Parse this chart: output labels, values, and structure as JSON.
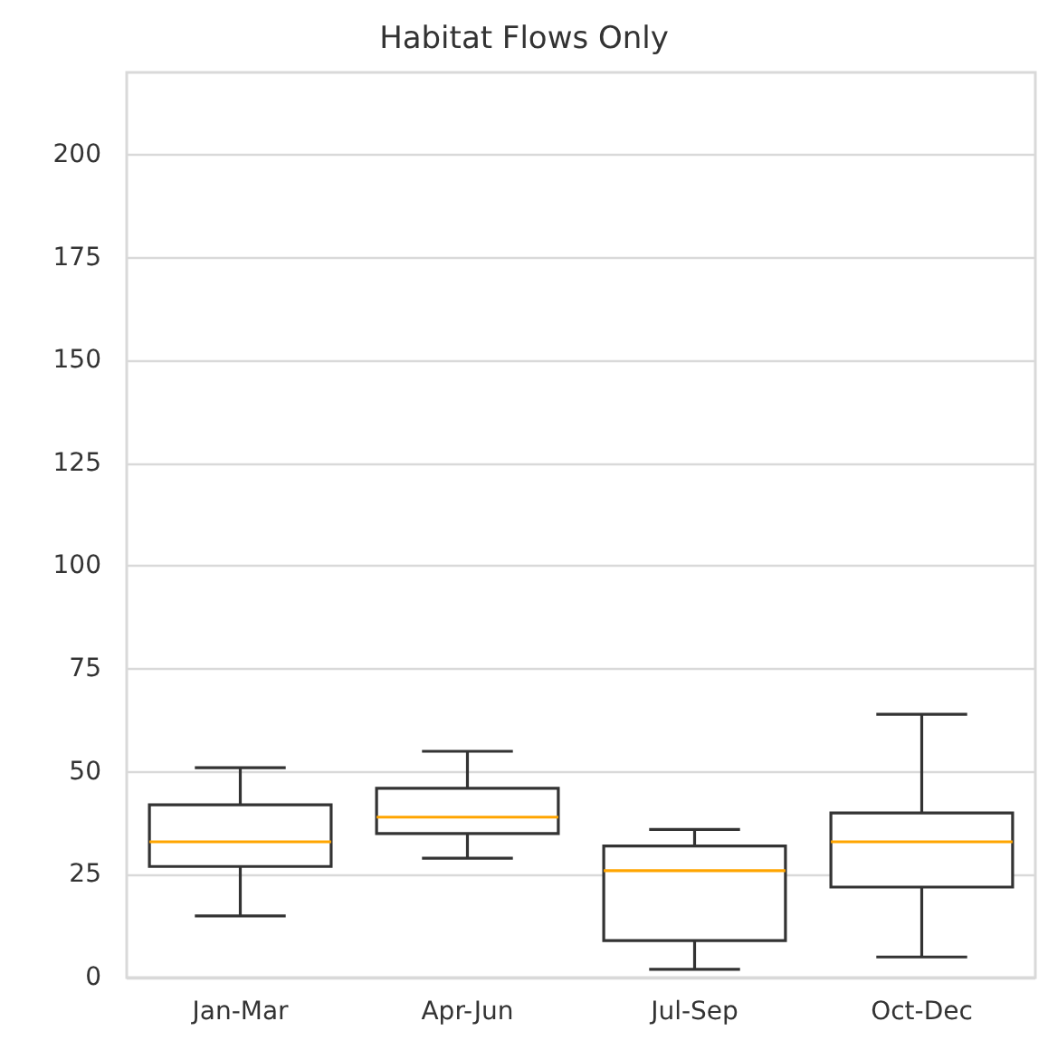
{
  "chart_data": {
    "type": "box",
    "title": "Habitat Flows Only",
    "categories": [
      "Jan-Mar",
      "Apr-Jun",
      "Jul-Sep",
      "Oct-Dec"
    ],
    "color": "#333333",
    "boxes": [
      {
        "low": 15,
        "q1": 27,
        "median": 33,
        "q3": 42,
        "high": 51
      },
      {
        "low": 29,
        "q1": 35,
        "median": 39,
        "q3": 46,
        "high": 55
      },
      {
        "low": 2,
        "q1": 9,
        "median": 26,
        "q3": 32,
        "high": 36
      },
      {
        "low": 5,
        "q1": 22,
        "median": 33,
        "q3": 40,
        "high": 64
      }
    ],
    "ylim": [
      0,
      220
    ],
    "yticks": [
      0,
      25,
      50,
      75,
      100,
      125,
      150,
      175,
      200
    ],
    "grid": "y"
  }
}
